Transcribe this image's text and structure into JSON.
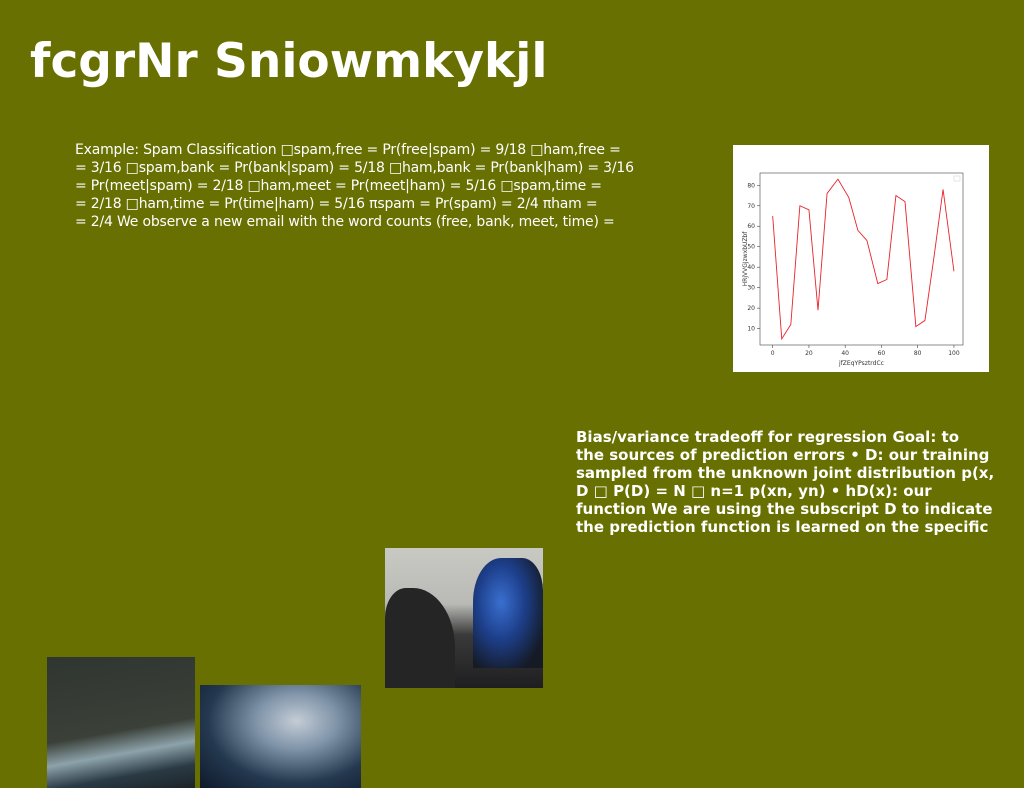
{
  "header": {
    "title": "fcgrNr Sniowmkykjl"
  },
  "paragraph1": {
    "lines": [
      "Example: Spam Classification □spam,free = Pr(free|spam) = 9/18 □ham,free =",
      "= 3/16 □spam,bank = Pr(bank|spam) = 5/18 □ham,bank = Pr(bank|ham) = 3/16",
      "= Pr(meet|spam) = 2/18 □ham,meet = Pr(meet|ham) = 5/16 □spam,time =",
      "= 2/18 □ham,time = Pr(time|ham) = 5/16 πspam = Pr(spam) = 2/4 πham =",
      "= 2/4 We observe a new email with the word counts (free, bank, meet, time) ="
    ]
  },
  "paragraph2": {
    "lines": [
      "Bias/variance tradeoff for regression Goal: to",
      "the sources of prediction errors • D: our training",
      "sampled from the unknown joint distribution p(x,",
      "D □ P(D) = N □ n=1 p(xn, yn) • hD(x): our",
      "function We are using the subscript D to indicate",
      "the prediction function is learned on the specific"
    ]
  },
  "chart_data": {
    "type": "line",
    "x_label": "jfZEqYPsztrdCc",
    "y_label": "HRjVVGJzwxbUZbf",
    "x": [
      0,
      5,
      10,
      15,
      20,
      25,
      30,
      36,
      42,
      47,
      52,
      58,
      63,
      68,
      73,
      79,
      84,
      89,
      94,
      100
    ],
    "series": [
      {
        "name": null,
        "color": "#e8232a",
        "values": [
          65,
          5,
          12,
          70,
          68,
          19,
          76,
          83,
          74,
          58,
          53,
          32,
          34,
          75,
          72,
          11,
          14,
          45,
          78,
          38
        ]
      }
    ],
    "xlim": [
      -7,
      105
    ],
    "ylim": [
      2,
      86
    ],
    "xticks": [
      0,
      20,
      40,
      60,
      80,
      100
    ],
    "yticks": [
      10,
      20,
      30,
      40,
      50,
      60,
      70,
      80
    ]
  }
}
